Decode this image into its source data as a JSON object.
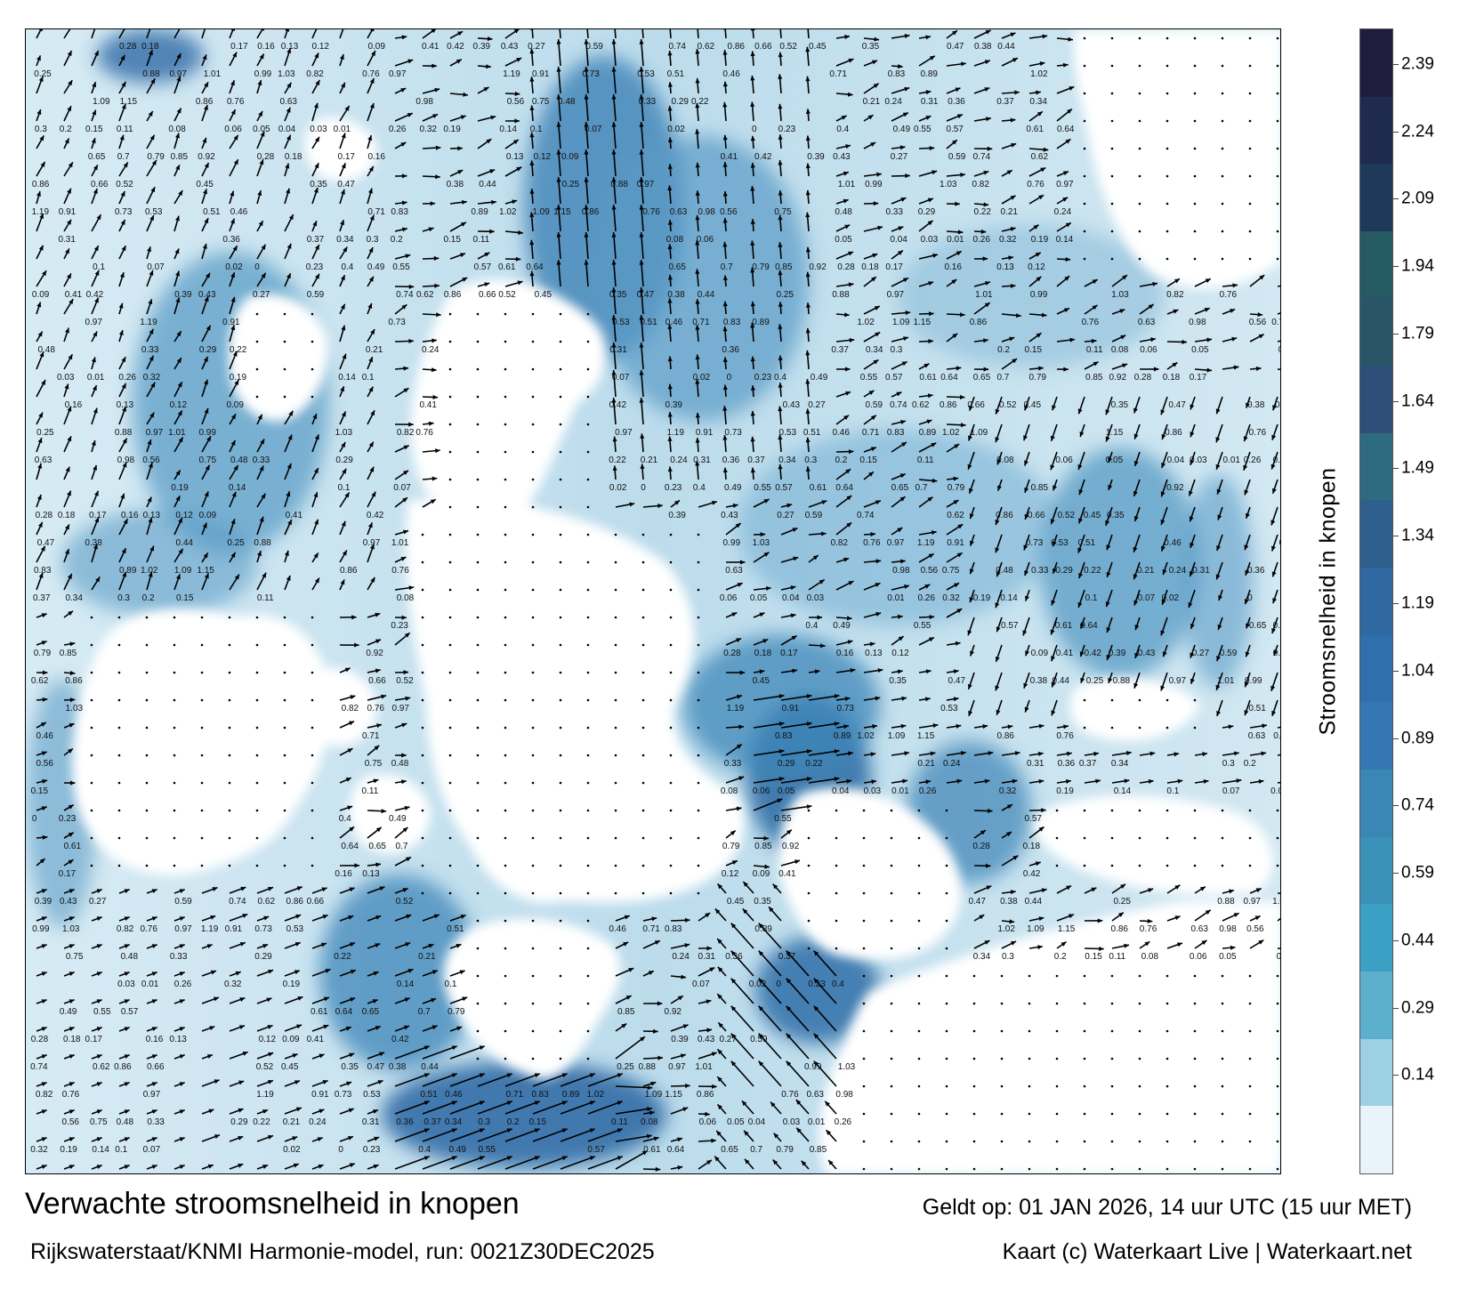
{
  "title": "Verwachte stroomsnelheid in knopen",
  "valid_time": "Geldt op: 01 JAN 2026, 14 uur UTC (15 uur MET)",
  "model_run": "Rijkswaterstaat/KNMI Harmonie-model, run: 0021Z30DEC2025",
  "credit": "Kaart (c) Waterkaart Live | Waterkaart.net",
  "colorbar": {
    "title": "Stroomsnelheid in knopen",
    "ticks": [
      "2.39",
      "2.24",
      "2.09",
      "1.94",
      "1.79",
      "1.64",
      "1.49",
      "1.34",
      "1.19",
      "1.04",
      "0.89",
      "0.74",
      "0.59",
      "0.44",
      "0.29",
      "0.14"
    ],
    "colors_top_to_bottom": [
      "#1f1d3f",
      "#1e2a4e",
      "#1d3a5a",
      "#255a62",
      "#2a5468",
      "#2d4f78",
      "#2e6a80",
      "#2f5f8c",
      "#3068a2",
      "#2f70ac",
      "#3577b2",
      "#3a86b4",
      "#3a92b8",
      "#3ba0c3",
      "#5db0cc",
      "#9cd0e2",
      "#e8f4f9"
    ]
  },
  "map": {
    "land_color": "#ffffff",
    "sea_color_low": "#e6f2f8",
    "sea_color_high": "#1e5f99",
    "speed_labels": [
      {
        "v": "0.28"
      },
      {
        "v": "0.18"
      },
      {
        "v": "0.17"
      },
      {
        "v": "0.16"
      },
      {
        "v": "0.13"
      },
      {
        "v": "0.12"
      },
      {
        "v": "0.09"
      },
      {
        "v": "0.41"
      },
      {
        "v": "0.42"
      },
      {
        "v": "0.39"
      },
      {
        "v": "0.43"
      },
      {
        "v": "0.27"
      },
      {
        "v": "0.59"
      },
      {
        "v": "0.74"
      },
      {
        "v": "0.62"
      },
      {
        "v": "0.86"
      },
      {
        "v": "0.66"
      },
      {
        "v": "0.52"
      },
      {
        "v": "0.45"
      },
      {
        "v": "0.35"
      },
      {
        "v": "0.47"
      },
      {
        "v": "0.38"
      },
      {
        "v": "0.44"
      },
      {
        "v": "0.25"
      },
      {
        "v": "0.88"
      },
      {
        "v": "0.97"
      },
      {
        "v": "1.01"
      },
      {
        "v": "0.99"
      },
      {
        "v": "1.03"
      },
      {
        "v": "0.82"
      },
      {
        "v": "0.76"
      },
      {
        "v": "0.97"
      },
      {
        "v": "1.19"
      },
      {
        "v": "0.91"
      },
      {
        "v": "0.73"
      },
      {
        "v": "0.53"
      },
      {
        "v": "0.51"
      },
      {
        "v": "0.46"
      },
      {
        "v": "0.71"
      },
      {
        "v": "0.83"
      },
      {
        "v": "0.89"
      },
      {
        "v": "1.02"
      },
      {
        "v": "1.09"
      },
      {
        "v": "1.15"
      },
      {
        "v": "0.86"
      },
      {
        "v": "0.76"
      },
      {
        "v": "0.63"
      },
      {
        "v": "0.98"
      },
      {
        "v": "0.56"
      },
      {
        "v": "0.75"
      },
      {
        "v": "0.48"
      },
      {
        "v": "0.33"
      },
      {
        "v": "0.29"
      },
      {
        "v": "0.22"
      },
      {
        "v": "0.21"
      },
      {
        "v": "0.24"
      },
      {
        "v": "0.31"
      },
      {
        "v": "0.36"
      },
      {
        "v": "0.37"
      },
      {
        "v": "0.34"
      },
      {
        "v": "0.3"
      },
      {
        "v": "0.2"
      },
      {
        "v": "0.15"
      },
      {
        "v": "0.11"
      },
      {
        "v": "0.08"
      },
      {
        "v": "0.06"
      },
      {
        "v": "0.05"
      },
      {
        "v": "0.04"
      },
      {
        "v": "0.03"
      },
      {
        "v": "0.01"
      },
      {
        "v": "0.26"
      },
      {
        "v": "0.32"
      },
      {
        "v": "0.19"
      },
      {
        "v": "0.14"
      },
      {
        "v": "0.1"
      },
      {
        "v": "0.07"
      },
      {
        "v": "0.02"
      },
      {
        "v": "0"
      },
      {
        "v": "0.23"
      },
      {
        "v": "0.4"
      },
      {
        "v": "0.49"
      },
      {
        "v": "0.55"
      },
      {
        "v": "0.57"
      },
      {
        "v": "0.61"
      },
      {
        "v": "0.64"
      },
      {
        "v": "0.65"
      },
      {
        "v": "0.7"
      },
      {
        "v": "0.79"
      },
      {
        "v": "0.85"
      },
      {
        "v": "0.92"
      }
    ]
  }
}
